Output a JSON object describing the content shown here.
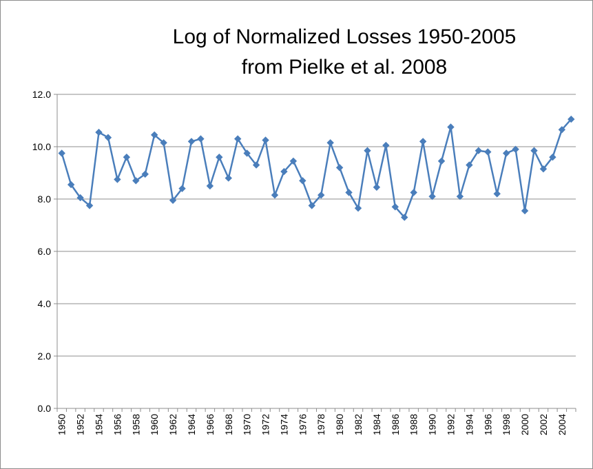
{
  "chart_data": {
    "type": "line",
    "title_line1": "Log of Normalized Losses 1950-2005",
    "title_line2": "from Pielke et al. 2008",
    "xlabel": "",
    "ylabel": "",
    "ylim": [
      0,
      12
    ],
    "y_ticks": [
      "0.0",
      "2.0",
      "4.0",
      "6.0",
      "8.0",
      "10.0",
      "12.0"
    ],
    "x_tick_labels": [
      "1950",
      "1952",
      "1954",
      "1956",
      "1958",
      "1960",
      "1962",
      "1964",
      "1966",
      "1968",
      "1970",
      "1972",
      "1974",
      "1976",
      "1978",
      "1980",
      "1982",
      "1984",
      "1986",
      "1988",
      "1990",
      "1992",
      "1994",
      "1996",
      "1998",
      "2000",
      "2002",
      "2004"
    ],
    "grid": true,
    "legend": "none",
    "series_color": "#4a7ebb",
    "x": [
      1950,
      1951,
      1952,
      1953,
      1954,
      1955,
      1956,
      1957,
      1958,
      1959,
      1960,
      1961,
      1962,
      1963,
      1964,
      1965,
      1966,
      1967,
      1968,
      1969,
      1970,
      1971,
      1972,
      1973,
      1974,
      1975,
      1976,
      1977,
      1978,
      1979,
      1980,
      1981,
      1982,
      1983,
      1984,
      1985,
      1986,
      1987,
      1988,
      1989,
      1990,
      1991,
      1992,
      1993,
      1994,
      1995,
      1996,
      1997,
      1998,
      1999,
      2000,
      2001,
      2002,
      2003,
      2004,
      2005
    ],
    "values": [
      9.75,
      8.55,
      8.05,
      7.75,
      10.55,
      10.35,
      8.75,
      9.6,
      8.7,
      8.95,
      10.45,
      10.15,
      7.95,
      8.4,
      10.2,
      10.3,
      8.5,
      9.6,
      8.8,
      10.3,
      9.75,
      9.3,
      10.25,
      8.15,
      9.05,
      9.45,
      8.7,
      7.75,
      8.15,
      10.15,
      9.2,
      8.25,
      7.65,
      9.85,
      8.45,
      10.05,
      7.7,
      7.3,
      8.25,
      10.2,
      8.1,
      9.45,
      10.75,
      8.1,
      9.3,
      9.85,
      9.8,
      8.2,
      9.75,
      9.9,
      7.55,
      9.85,
      9.15,
      9.6,
      10.65,
      11.05
    ]
  }
}
